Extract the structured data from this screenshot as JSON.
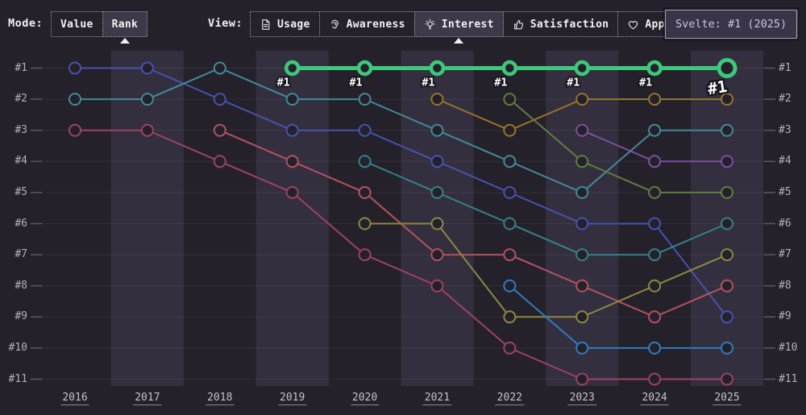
{
  "topbar": {
    "mode": {
      "label": "Mode:",
      "options": [
        {
          "label": "Value",
          "selected": false
        },
        {
          "label": "Rank",
          "selected": true
        }
      ]
    },
    "view": {
      "label": "View:",
      "options": [
        {
          "label": "Usage",
          "icon": "document-icon",
          "selected": false
        },
        {
          "label": "Awareness",
          "icon": "ear-icon",
          "selected": false
        },
        {
          "label": "Interest",
          "icon": "lightbulb-icon",
          "selected": true
        },
        {
          "label": "Satisfaction",
          "icon": "thumbs-up-icon",
          "selected": false
        },
        {
          "label": "Appreciation",
          "icon": "heart-icon",
          "selected": false
        }
      ]
    },
    "tooltip": {
      "text": "Svelte: #1 (2025)"
    }
  },
  "chart_data": {
    "type": "line",
    "subtype": "bump-rank-chart",
    "x": [
      2016,
      2017,
      2018,
      2019,
      2020,
      2021,
      2022,
      2023,
      2024,
      2025
    ],
    "rank_labels": [
      "#1",
      "#2",
      "#3",
      "#4",
      "#5",
      "#6",
      "#7",
      "#8",
      "#9",
      "#10",
      "#11"
    ],
    "ylim": [
      1,
      11
    ],
    "grid": "horizontal",
    "legend": "none",
    "band_color": "#332f3e",
    "highlight": {
      "name": "Svelte",
      "color": "#3dc87c",
      "points": [
        [
          2019,
          1
        ],
        [
          2020,
          1
        ],
        [
          2021,
          1
        ],
        [
          2022,
          1
        ],
        [
          2023,
          1
        ],
        [
          2024,
          1
        ],
        [
          2025,
          1
        ]
      ],
      "point_label": "#1",
      "end_label": "#1",
      "tooltip": "Svelte: #1 (2025)"
    },
    "series": [
      {
        "name": "series-indigo",
        "color": "#4553ae",
        "points": [
          [
            2016,
            1
          ],
          [
            2017,
            1
          ],
          [
            2018,
            2
          ],
          [
            2019,
            3
          ],
          [
            2020,
            3
          ],
          [
            2021,
            4
          ],
          [
            2022,
            5
          ],
          [
            2023,
            6
          ],
          [
            2024,
            6
          ],
          [
            2025,
            9
          ]
        ]
      },
      {
        "name": "series-teal",
        "color": "#41899a",
        "points": [
          [
            2016,
            2
          ],
          [
            2017,
            2
          ],
          [
            2018,
            1
          ],
          [
            2019,
            2
          ],
          [
            2020,
            2
          ],
          [
            2021,
            3
          ],
          [
            2022,
            4
          ],
          [
            2023,
            5
          ],
          [
            2024,
            3
          ],
          [
            2025,
            3
          ]
        ]
      },
      {
        "name": "series-maroon",
        "color": "#9d4263",
        "points": [
          [
            2016,
            3
          ],
          [
            2017,
            3
          ],
          [
            2018,
            4
          ],
          [
            2019,
            5
          ],
          [
            2020,
            7
          ],
          [
            2021,
            8
          ],
          [
            2022,
            10
          ],
          [
            2023,
            11
          ],
          [
            2024,
            11
          ],
          [
            2025,
            11
          ]
        ]
      },
      {
        "name": "series-rose",
        "color": "#b25260",
        "points": [
          [
            2018,
            3
          ],
          [
            2019,
            4
          ],
          [
            2020,
            5
          ],
          [
            2021,
            7
          ],
          [
            2022,
            7
          ],
          [
            2023,
            8
          ],
          [
            2024,
            9
          ],
          [
            2025,
            8
          ]
        ]
      },
      {
        "name": "series-cyan",
        "color": "#35808b",
        "points": [
          [
            2020,
            4
          ],
          [
            2021,
            5
          ],
          [
            2022,
            6
          ],
          [
            2023,
            7
          ],
          [
            2024,
            7
          ],
          [
            2025,
            6
          ]
        ]
      },
      {
        "name": "series-olive",
        "color": "#8e8742",
        "points": [
          [
            2020,
            6
          ],
          [
            2021,
            6
          ],
          [
            2022,
            9
          ],
          [
            2023,
            9
          ],
          [
            2024,
            8
          ],
          [
            2025,
            7
          ]
        ]
      },
      {
        "name": "series-tan",
        "color": "#97742e",
        "points": [
          [
            2021,
            2
          ],
          [
            2022,
            3
          ],
          [
            2023,
            2
          ],
          [
            2024,
            2
          ],
          [
            2025,
            2
          ]
        ]
      },
      {
        "name": "series-sage",
        "color": "#5d7f3e",
        "points": [
          [
            2022,
            2
          ],
          [
            2023,
            4
          ],
          [
            2024,
            5
          ],
          [
            2025,
            5
          ]
        ]
      },
      {
        "name": "series-steelblue",
        "color": "#2e7cc0",
        "points": [
          [
            2022,
            8
          ],
          [
            2023,
            10
          ],
          [
            2024,
            10
          ],
          [
            2025,
            10
          ]
        ]
      },
      {
        "name": "series-purple",
        "color": "#7d4fa0",
        "points": [
          [
            2023,
            3
          ],
          [
            2024,
            4
          ],
          [
            2025,
            4
          ]
        ]
      }
    ]
  }
}
